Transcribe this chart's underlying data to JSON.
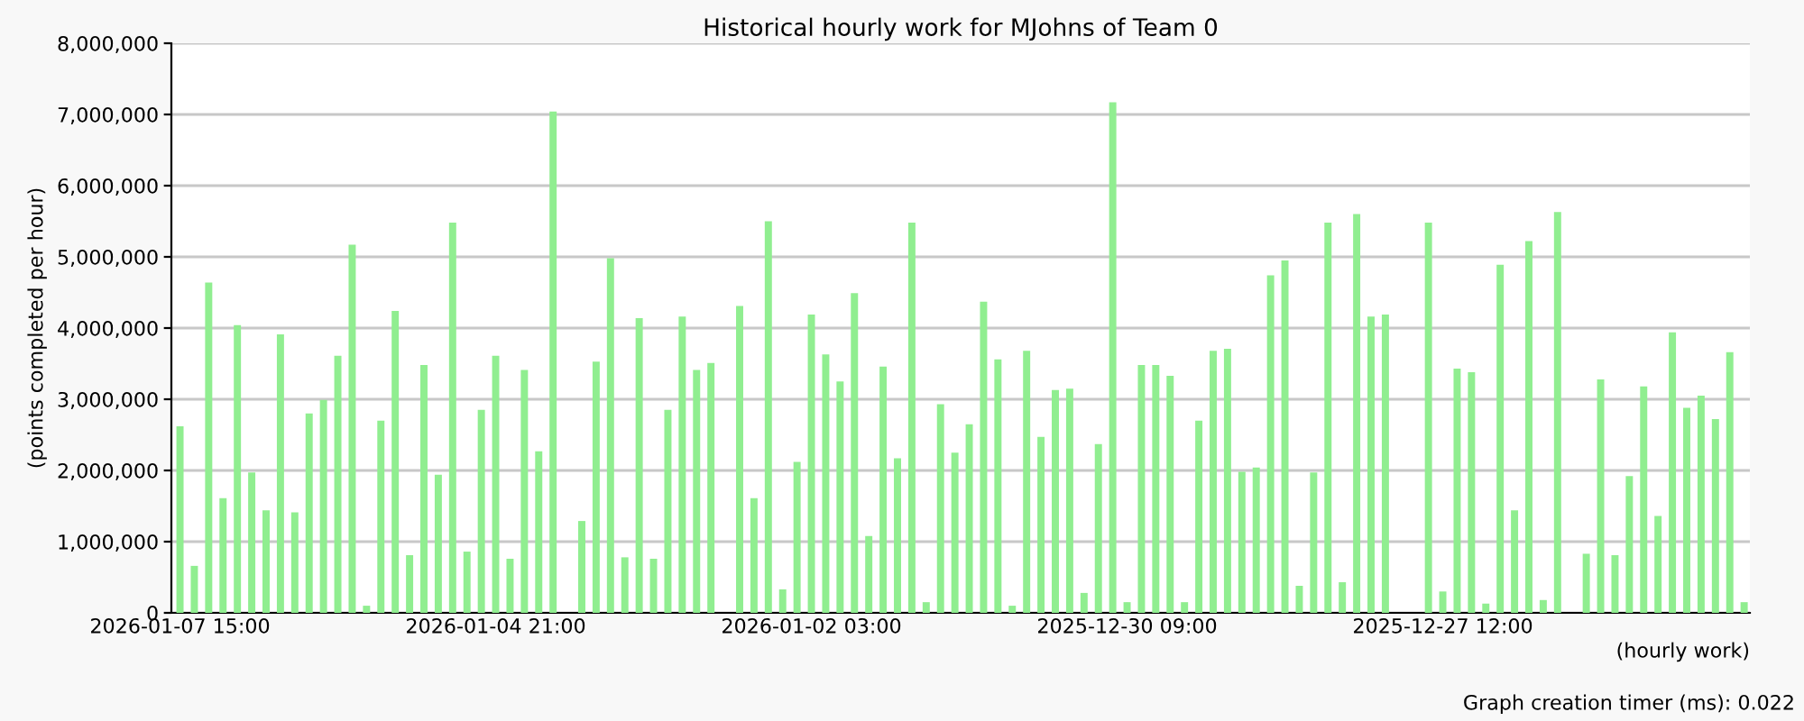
{
  "chart_data": {
    "type": "bar",
    "title": "Historical hourly work for MJohns of Team 0",
    "xlabel": "(hourly work)",
    "ylabel": "(points completed per hour)",
    "categories": [
      "2026-01-07 15:00",
      null,
      null,
      null,
      null,
      null,
      null,
      null,
      null,
      null,
      null,
      null,
      null,
      null,
      null,
      null,
      null,
      null,
      null,
      null,
      null,
      null,
      "2026-01-04 21:00",
      null,
      null,
      null,
      null,
      null,
      null,
      null,
      null,
      null,
      null,
      null,
      null,
      null,
      null,
      null,
      null,
      null,
      null,
      null,
      null,
      null,
      "2026-01-02 03:00",
      null,
      null,
      null,
      null,
      null,
      null,
      null,
      null,
      null,
      null,
      null,
      null,
      null,
      null,
      null,
      null,
      null,
      null,
      null,
      null,
      null,
      "2025-12-30 09:00",
      null,
      null,
      null,
      null,
      null,
      null,
      null,
      null,
      null,
      null,
      null,
      null,
      null,
      null,
      null,
      null,
      null,
      null,
      null,
      null,
      null,
      "2025-12-27 12:00",
      null,
      null,
      null,
      null,
      null,
      null,
      null,
      null,
      null,
      null,
      null,
      null,
      null,
      null,
      null,
      null,
      null,
      null,
      null,
      null,
      null
    ],
    "values": [
      2620000,
      660000,
      4640000,
      1610000,
      4040000,
      1970000,
      1440000,
      3910000,
      1410000,
      2800000,
      2990000,
      3610000,
      5170000,
      100000,
      2700000,
      4240000,
      810000,
      3480000,
      1940000,
      5480000,
      860000,
      2850000,
      3610000,
      760000,
      3410000,
      2270000,
      7040000,
      0,
      1290000,
      3530000,
      4980000,
      780000,
      4140000,
      760000,
      2850000,
      4160000,
      3410000,
      3510000,
      0,
      4310000,
      1610000,
      5500000,
      330000,
      2120000,
      4190000,
      3630000,
      3250000,
      4490000,
      1080000,
      3460000,
      2170000,
      5480000,
      150000,
      2930000,
      2250000,
      2650000,
      4370000,
      3560000,
      100000,
      3680000,
      2470000,
      3130000,
      3150000,
      280000,
      2370000,
      7170000,
      150000,
      3480000,
      3480000,
      3330000,
      150000,
      2700000,
      3680000,
      3710000,
      1980000,
      2040000,
      4740000,
      4950000,
      380000,
      1970000,
      5480000,
      430000,
      5600000,
      4160000,
      4190000,
      0,
      0,
      5480000,
      300000,
      3430000,
      3380000,
      130000,
      4890000,
      1440000,
      5220000,
      180000,
      5630000,
      0,
      830000,
      3280000,
      810000,
      1920000,
      3180000,
      1360000,
      3940000,
      2880000,
      3050000,
      2720000,
      3660000,
      150000
    ],
    "color": "#90ee90",
    "ylim": [
      0,
      8000000
    ],
    "yticks": [
      0,
      {
        "value": 1000000,
        "label": "1,000,000"
      },
      {
        "value": 2000000,
        "label": "2,000,000"
      },
      {
        "value": 3000000,
        "label": "3,000,000"
      },
      {
        "value": 4000000,
        "label": "4,000,000"
      },
      {
        "value": 5000000,
        "label": "5,000,000"
      },
      {
        "value": 6000000,
        "label": "6,000,000"
      },
      {
        "value": 7000000,
        "label": "7,000,000"
      },
      {
        "value": 8000000,
        "label": "8,000,000"
      }
    ],
    "grid": "y",
    "annotations": [
      "Graph creation timer (ms): 0.022"
    ]
  }
}
